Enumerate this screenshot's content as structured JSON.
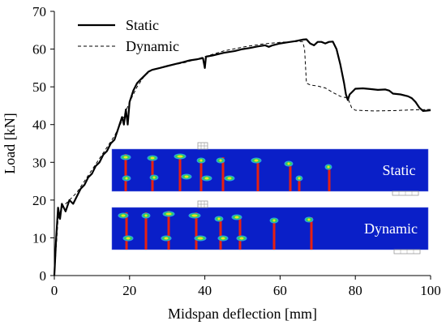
{
  "chart_data": {
    "type": "line",
    "xlabel": "Midspan deflection [mm]",
    "ylabel": "Load [kN]",
    "xlim": [
      0,
      100
    ],
    "ylim": [
      0,
      70
    ],
    "xticks": [
      "0",
      "20",
      "40",
      "60",
      "80",
      "100"
    ],
    "yticks": [
      "0",
      "10",
      "20",
      "30",
      "40",
      "50",
      "60",
      "70"
    ],
    "grid": false,
    "legend_position": "top-left",
    "series": [
      {
        "name": "Static",
        "style": "solid",
        "color": "#000000",
        "points": [
          [
            0,
            0
          ],
          [
            0.5,
            10
          ],
          [
            1,
            18
          ],
          [
            1.5,
            15
          ],
          [
            2,
            19
          ],
          [
            3,
            17
          ],
          [
            4,
            20
          ],
          [
            5,
            19
          ],
          [
            6,
            21
          ],
          [
            7,
            23
          ],
          [
            8,
            24
          ],
          [
            9,
            26
          ],
          [
            10,
            27
          ],
          [
            11,
            29
          ],
          [
            12,
            30
          ],
          [
            13,
            32
          ],
          [
            14,
            33
          ],
          [
            15,
            35
          ],
          [
            16,
            36
          ],
          [
            17,
            39
          ],
          [
            18,
            42
          ],
          [
            18.5,
            40
          ],
          [
            19,
            44
          ],
          [
            19.5,
            40
          ],
          [
            20,
            46
          ],
          [
            21,
            49
          ],
          [
            22,
            51
          ],
          [
            23,
            52
          ],
          [
            24,
            53
          ],
          [
            25,
            54
          ],
          [
            26,
            54.5
          ],
          [
            28,
            55
          ],
          [
            30,
            55.5
          ],
          [
            32,
            56
          ],
          [
            34,
            56.5
          ],
          [
            36,
            57
          ],
          [
            38,
            57.3
          ],
          [
            39.5,
            57.6
          ],
          [
            40,
            55
          ],
          [
            40.3,
            58
          ],
          [
            42,
            58.3
          ],
          [
            45,
            59
          ],
          [
            48,
            59.5
          ],
          [
            50,
            60
          ],
          [
            52,
            60.3
          ],
          [
            54,
            60.7
          ],
          [
            56,
            61
          ],
          [
            57,
            60.6
          ],
          [
            58,
            61
          ],
          [
            60,
            61.5
          ],
          [
            62,
            61.8
          ],
          [
            64,
            62.1
          ],
          [
            66,
            62.5
          ],
          [
            67,
            62.6
          ],
          [
            68,
            61.5
          ],
          [
            69,
            61
          ],
          [
            70,
            61.9
          ],
          [
            71,
            61.9
          ],
          [
            72,
            61.5
          ],
          [
            73,
            61.9
          ],
          [
            74,
            62
          ],
          [
            75,
            60
          ],
          [
            76,
            56
          ],
          [
            77,
            51
          ],
          [
            77.5,
            48
          ],
          [
            78,
            46.5
          ],
          [
            78.5,
            48
          ],
          [
            80,
            49.5
          ],
          [
            82,
            49.6
          ],
          [
            84,
            49.4
          ],
          [
            86,
            49.2
          ],
          [
            88,
            49.3
          ],
          [
            89,
            49
          ],
          [
            90,
            48.2
          ],
          [
            92,
            48
          ],
          [
            94,
            47.5
          ],
          [
            95,
            47
          ],
          [
            96,
            46
          ],
          [
            97,
            44.5
          ],
          [
            98,
            43.6
          ],
          [
            99,
            43.7
          ],
          [
            100,
            43.8
          ]
        ]
      },
      {
        "name": "Dynamic",
        "style": "dashed",
        "color": "#000000",
        "points": [
          [
            0,
            0
          ],
          [
            1,
            15
          ],
          [
            2,
            18
          ],
          [
            4,
            20
          ],
          [
            6,
            22
          ],
          [
            8,
            25
          ],
          [
            10,
            28
          ],
          [
            12,
            31
          ],
          [
            14,
            34
          ],
          [
            16,
            37
          ],
          [
            18,
            41
          ],
          [
            20,
            46
          ],
          [
            22,
            50
          ],
          [
            24,
            53
          ],
          [
            26,
            54.5
          ],
          [
            30,
            55.5
          ],
          [
            35,
            56.5
          ],
          [
            40,
            58
          ],
          [
            45,
            59.5
          ],
          [
            50,
            60.5
          ],
          [
            55,
            61.3
          ],
          [
            60,
            61.8
          ],
          [
            64,
            62
          ],
          [
            66,
            62
          ],
          [
            66.5,
            60
          ],
          [
            67,
            51
          ],
          [
            68,
            50.5
          ],
          [
            70,
            50.2
          ],
          [
            72,
            49.7
          ],
          [
            74,
            48.5
          ],
          [
            76,
            47.5
          ],
          [
            78,
            47
          ],
          [
            79,
            44.5
          ],
          [
            80,
            43.8
          ],
          [
            85,
            43.6
          ],
          [
            90,
            43.7
          ],
          [
            95,
            43.9
          ],
          [
            100,
            44
          ]
        ]
      }
    ]
  },
  "inset_panels": [
    {
      "label": "Static",
      "crack_count": 9
    },
    {
      "label": "Dynamic",
      "crack_count": 9
    }
  ],
  "colors": {
    "panel_bg": "#0a1fc8",
    "crack": "#e82010",
    "damage_hot": "#f0e020",
    "damage_warm": "#30d060",
    "damage_cool": "#2aa0e0",
    "mesh": "#b0b0b0"
  }
}
